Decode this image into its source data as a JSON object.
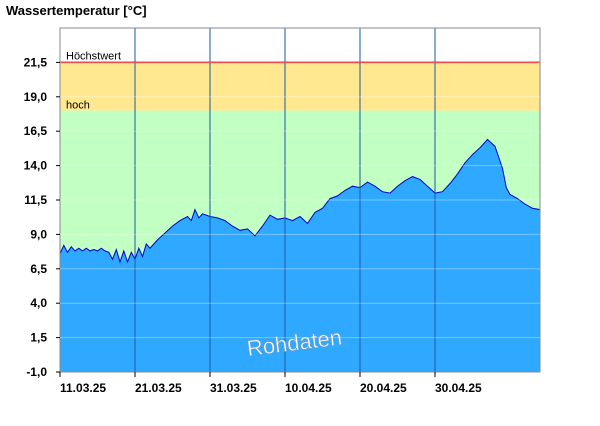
{
  "chart_data": {
    "type": "area",
    "title": "Wassertemperatur [°C]",
    "ylim": [
      -1.0,
      24.0
    ],
    "yticks": [
      "-1,0",
      "1,5",
      "4,0",
      "6,5",
      "9,0",
      "11,5",
      "14,0",
      "16,5",
      "19,0",
      "21,5"
    ],
    "ytick_values": [
      -1.0,
      1.5,
      4.0,
      6.5,
      9.0,
      11.5,
      14.0,
      16.5,
      19.0,
      21.5
    ],
    "xticks": [
      "11.03.25",
      "21.03.25",
      "31.03.25",
      "10.04.25",
      "20.04.25",
      "30.04.25"
    ],
    "xrange_days": [
      0,
      60
    ],
    "bands": [
      {
        "label": "hoch",
        "from": 18.0,
        "to": 21.5,
        "color": "#ffe88f"
      },
      {
        "label": "",
        "from": -1.0,
        "to": 18.0,
        "color": "#c2ffc2"
      }
    ],
    "threshold_line": {
      "label": "Höchstwert",
      "value": 21.5,
      "color": "#dd0000"
    },
    "series": [
      {
        "fill": "#2ea9ff",
        "stroke": "#0000cc",
        "points": [
          [
            0,
            7.6
          ],
          [
            0.5,
            8.2
          ],
          [
            1,
            7.7
          ],
          [
            1.5,
            8.1
          ],
          [
            2,
            7.8
          ],
          [
            2.5,
            8.0
          ],
          [
            3,
            7.8
          ],
          [
            3.5,
            8.0
          ],
          [
            4,
            7.8
          ],
          [
            4.5,
            7.9
          ],
          [
            5,
            7.8
          ],
          [
            5.5,
            8.0
          ],
          [
            6,
            7.8
          ],
          [
            6.5,
            7.7
          ],
          [
            7,
            7.2
          ],
          [
            7.5,
            7.9
          ],
          [
            8,
            7.0
          ],
          [
            8.5,
            7.8
          ],
          [
            9,
            7.0
          ],
          [
            9.5,
            7.7
          ],
          [
            10,
            7.2
          ],
          [
            10.5,
            8.0
          ],
          [
            11,
            7.4
          ],
          [
            11.5,
            8.3
          ],
          [
            12,
            8.0
          ],
          [
            13,
            8.6
          ],
          [
            14,
            9.1
          ],
          [
            15,
            9.6
          ],
          [
            16,
            10.0
          ],
          [
            17,
            10.3
          ],
          [
            17.5,
            10.0
          ],
          [
            18,
            10.8
          ],
          [
            18.5,
            10.2
          ],
          [
            19,
            10.5
          ],
          [
            20,
            10.3
          ],
          [
            21,
            10.2
          ],
          [
            22,
            10.0
          ],
          [
            23,
            9.6
          ],
          [
            24,
            9.3
          ],
          [
            25,
            9.4
          ],
          [
            26,
            8.9
          ],
          [
            27,
            9.6
          ],
          [
            28,
            10.4
          ],
          [
            29,
            10.1
          ],
          [
            30,
            10.2
          ],
          [
            31,
            10.0
          ],
          [
            32,
            10.3
          ],
          [
            33,
            9.8
          ],
          [
            34,
            10.6
          ],
          [
            35,
            10.9
          ],
          [
            36,
            11.6
          ],
          [
            37,
            11.8
          ],
          [
            38,
            12.2
          ],
          [
            39,
            12.5
          ],
          [
            40,
            12.4
          ],
          [
            41,
            12.8
          ],
          [
            42,
            12.5
          ],
          [
            43,
            12.1
          ],
          [
            44,
            12.0
          ],
          [
            45,
            12.5
          ],
          [
            46,
            12.9
          ],
          [
            47,
            13.2
          ],
          [
            48,
            13.0
          ],
          [
            49,
            12.5
          ],
          [
            50,
            12.0
          ],
          [
            51,
            12.1
          ],
          [
            52,
            12.7
          ],
          [
            53,
            13.4
          ],
          [
            54,
            14.2
          ],
          [
            55,
            14.8
          ],
          [
            56,
            15.3
          ],
          [
            57,
            15.9
          ],
          [
            58,
            15.4
          ],
          [
            59,
            13.8
          ],
          [
            59.5,
            12.4
          ],
          [
            60,
            11.9
          ],
          [
            61,
            11.6
          ],
          [
            62,
            11.2
          ],
          [
            63,
            10.9
          ],
          [
            64,
            10.8
          ]
        ]
      }
    ],
    "annotation": "Rohdaten"
  }
}
